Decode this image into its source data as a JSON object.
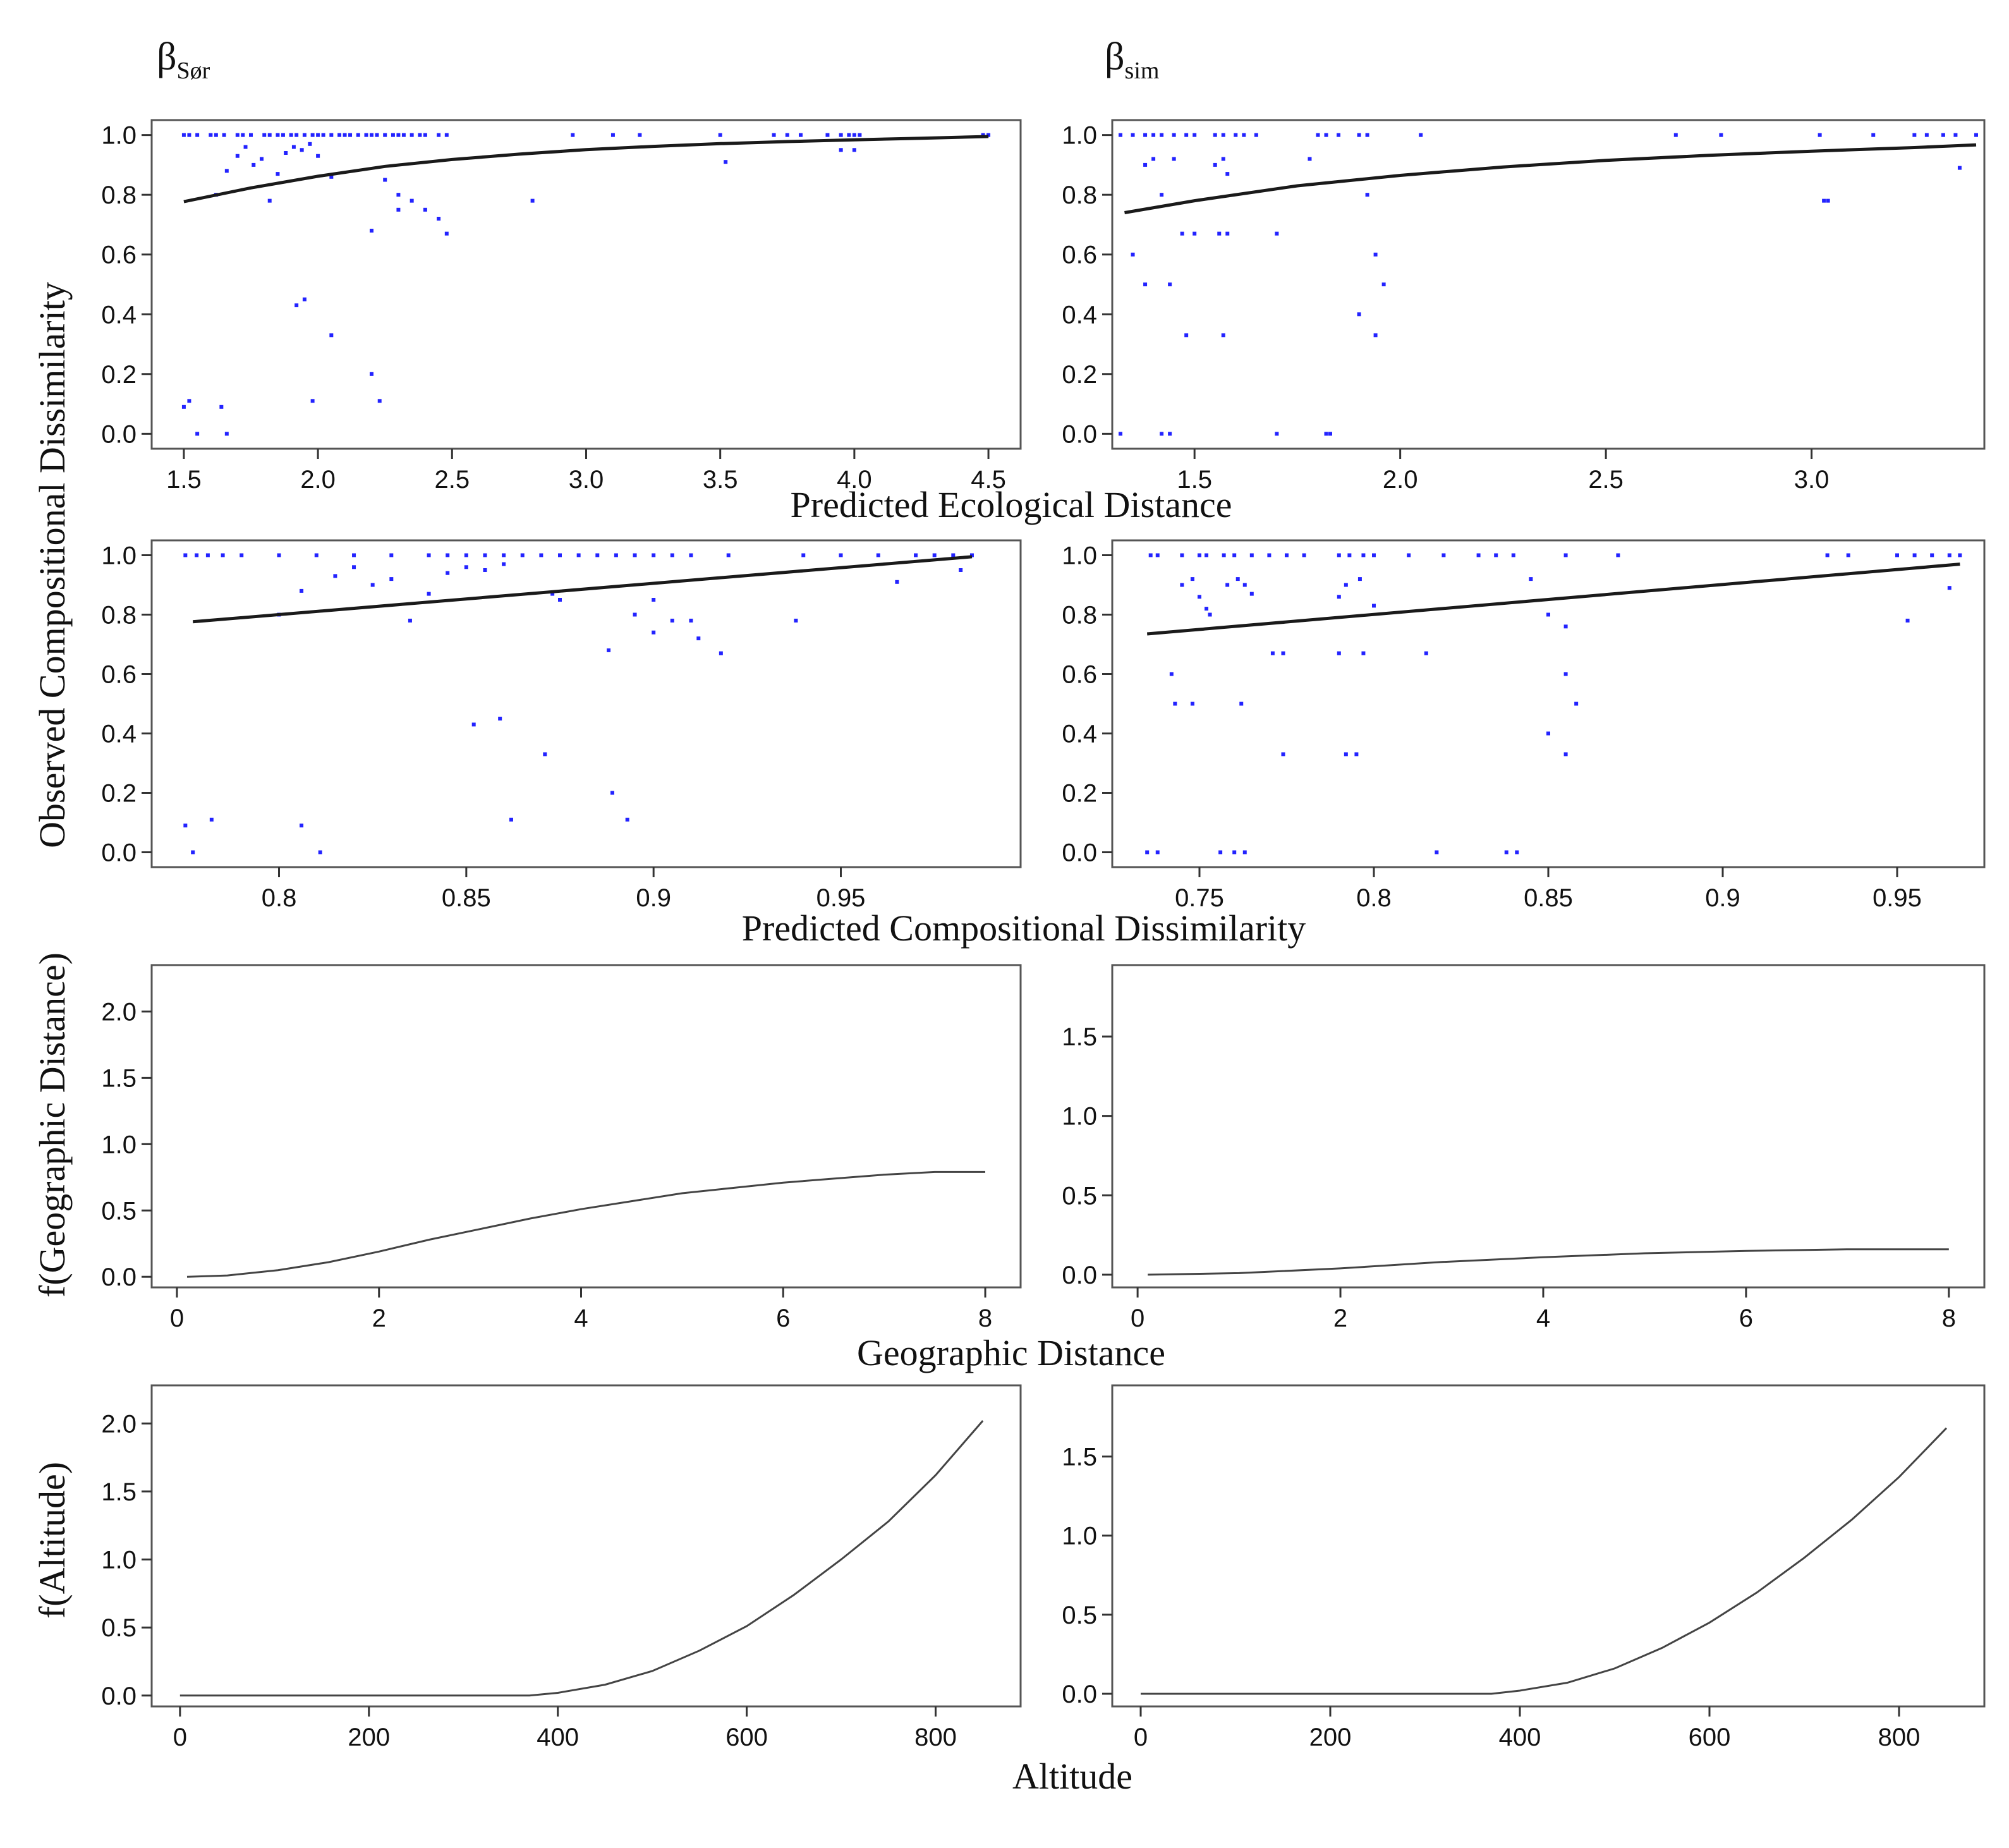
{
  "figure": {
    "column_titles": [
      {
        "symbol": "β",
        "subscript": "Sør"
      },
      {
        "symbol": "β",
        "subscript": "sim"
      }
    ],
    "axis_labels": {
      "row1_x": "Predicted Ecological Distance",
      "rows12_y": "Observed Compositional Dissimilarity",
      "row2_x": "Predicted Compositional Dissimilarity",
      "row3_y": "f(Geographic Distance)",
      "row3_x": "Geographic Distance",
      "row4_y": "f(Altitude)",
      "row4_x": "Altitude"
    }
  },
  "chart_data": [
    {
      "id": "eco_sor",
      "type": "scatter",
      "xlabel": "Predicted Ecological Distance",
      "ylabel": "Observed Compositional Dissimilarity",
      "xlim": [
        1.38,
        4.62
      ],
      "ylim": [
        -0.05,
        1.05
      ],
      "xticks": [
        1.5,
        2.0,
        2.5,
        3.0,
        3.5,
        4.0,
        4.5
      ],
      "yticks": [
        0.0,
        0.2,
        0.4,
        0.6,
        0.8,
        1.0
      ],
      "xtick_labels": [
        "1.5",
        "2.0",
        "2.5",
        "3.0",
        "3.5",
        "4.0",
        "4.5"
      ],
      "ytick_labels": [
        "0.0",
        "0.2",
        "0.4",
        "0.6",
        "0.8",
        "1.0"
      ],
      "points": {
        "x": [
          1.5,
          1.52,
          1.55,
          1.6,
          1.62,
          1.65,
          1.7,
          1.72,
          1.75,
          1.8,
          1.82,
          1.85,
          1.87,
          1.9,
          1.92,
          1.95,
          1.98,
          2.0,
          2.02,
          2.05,
          2.08,
          2.1,
          2.12,
          2.15,
          2.18,
          2.2,
          2.22,
          2.25,
          2.28,
          2.3,
          2.32,
          2.35,
          2.38,
          2.4,
          2.45,
          2.48,
          1.62,
          1.66,
          1.7,
          1.73,
          1.76,
          1.79,
          1.82,
          1.85,
          1.88,
          1.91,
          1.94,
          1.97,
          2.0,
          2.05,
          2.25,
          2.3,
          2.35,
          2.4,
          2.45,
          2.48,
          2.8,
          2.2,
          2.3,
          1.92,
          1.95,
          2.05,
          1.5,
          1.52,
          1.55,
          1.64,
          1.66,
          1.98,
          2.2,
          2.23,
          2.95,
          3.1,
          3.2,
          3.5,
          3.52,
          3.7,
          3.75,
          3.8,
          3.9,
          3.95,
          3.98,
          4.0,
          4.02,
          3.95,
          4.0,
          4.5,
          4.48
        ],
        "y": [
          1.0,
          1.0,
          1.0,
          1.0,
          1.0,
          1.0,
          1.0,
          1.0,
          1.0,
          1.0,
          1.0,
          1.0,
          1.0,
          1.0,
          1.0,
          1.0,
          1.0,
          1.0,
          1.0,
          1.0,
          1.0,
          1.0,
          1.0,
          1.0,
          1.0,
          1.0,
          1.0,
          1.0,
          1.0,
          1.0,
          1.0,
          1.0,
          1.0,
          1.0,
          1.0,
          1.0,
          0.8,
          0.88,
          0.93,
          0.96,
          0.9,
          0.92,
          0.78,
          0.87,
          0.94,
          0.96,
          0.95,
          0.97,
          0.93,
          0.86,
          0.85,
          0.75,
          0.78,
          0.75,
          0.72,
          0.67,
          0.78,
          0.68,
          0.8,
          0.43,
          0.45,
          0.33,
          0.09,
          0.11,
          0.0,
          0.09,
          0.0,
          0.11,
          0.2,
          0.11,
          1.0,
          1.0,
          1.0,
          1.0,
          0.91,
          1.0,
          1.0,
          1.0,
          1.0,
          1.0,
          1.0,
          1.0,
          1.0,
          0.95,
          0.95,
          1.0,
          1.0
        ]
      },
      "fit": {
        "x": [
          1.5,
          1.75,
          2.0,
          2.25,
          2.5,
          2.75,
          3.0,
          3.25,
          3.5,
          3.75,
          4.0,
          4.25,
          4.5
        ],
        "y": [
          0.777,
          0.823,
          0.862,
          0.895,
          0.918,
          0.936,
          0.951,
          0.962,
          0.971,
          0.978,
          0.984,
          0.989,
          0.995
        ]
      }
    },
    {
      "id": "eco_sim",
      "type": "scatter",
      "xlabel": "Predicted Ecological Distance",
      "ylabel": "",
      "xlim": [
        1.3,
        3.42
      ],
      "ylim": [
        -0.05,
        1.05
      ],
      "xticks": [
        1.5,
        2.0,
        2.5,
        3.0
      ],
      "yticks": [
        0.0,
        0.2,
        0.4,
        0.6,
        0.8,
        1.0
      ],
      "xtick_labels": [
        "1.5",
        "2.0",
        "2.5",
        "3.0"
      ],
      "ytick_labels": [
        "0.0",
        "0.2",
        "0.4",
        "0.6",
        "0.8",
        "1.0"
      ],
      "points": {
        "x": [
          1.32,
          1.35,
          1.38,
          1.4,
          1.42,
          1.45,
          1.48,
          1.5,
          1.55,
          1.57,
          1.6,
          1.62,
          1.65,
          1.8,
          1.82,
          1.85,
          1.9,
          1.92,
          2.05,
          2.67,
          2.78,
          3.02,
          3.15,
          3.25,
          3.28,
          3.32,
          3.35,
          3.4,
          1.38,
          1.4,
          1.42,
          1.45,
          1.55,
          1.57,
          1.58,
          1.78,
          1.92,
          1.47,
          1.5,
          1.56,
          1.58,
          1.7,
          1.35,
          1.38,
          1.44,
          1.94,
          1.96,
          1.9,
          1.94,
          1.48,
          1.57,
          1.32,
          1.42,
          1.44,
          1.7,
          1.82,
          1.83,
          3.03,
          3.04,
          3.36
        ],
        "y": [
          1.0,
          1.0,
          1.0,
          1.0,
          1.0,
          1.0,
          1.0,
          1.0,
          1.0,
          1.0,
          1.0,
          1.0,
          1.0,
          1.0,
          1.0,
          1.0,
          1.0,
          1.0,
          1.0,
          1.0,
          1.0,
          1.0,
          1.0,
          1.0,
          1.0,
          1.0,
          1.0,
          1.0,
          0.9,
          0.92,
          0.8,
          0.92,
          0.9,
          0.92,
          0.87,
          0.92,
          0.8,
          0.67,
          0.67,
          0.67,
          0.67,
          0.67,
          0.6,
          0.5,
          0.5,
          0.6,
          0.5,
          0.4,
          0.33,
          0.33,
          0.33,
          0.0,
          0.0,
          0.0,
          0.0,
          0.0,
          0.0,
          0.78,
          0.78,
          0.89
        ]
      },
      "fit": {
        "x": [
          1.33,
          1.5,
          1.75,
          2.0,
          2.25,
          2.5,
          2.75,
          3.0,
          3.25,
          3.4
        ],
        "y": [
          0.74,
          0.78,
          0.83,
          0.865,
          0.893,
          0.915,
          0.932,
          0.946,
          0.958,
          0.967
        ]
      }
    },
    {
      "id": "comp_sor",
      "type": "scatter",
      "xlabel": "Predicted Compositional Dissimilarity",
      "ylabel": "Observed Compositional Dissimilarity",
      "xlim": [
        0.766,
        0.998
      ],
      "ylim": [
        -0.05,
        1.05
      ],
      "xticks": [
        0.8,
        0.85,
        0.9,
        0.95
      ],
      "yticks": [
        0.0,
        0.2,
        0.4,
        0.6,
        0.8,
        1.0
      ],
      "xtick_labels": [
        "0.8",
        "0.85",
        "0.9",
        "0.95"
      ],
      "ytick_labels": [
        "0.0",
        "0.2",
        "0.4",
        "0.6",
        "0.8",
        "1.0"
      ],
      "points": {
        "x": [
          0.775,
          0.778,
          0.781,
          0.785,
          0.79,
          0.8,
          0.81,
          0.82,
          0.83,
          0.84,
          0.845,
          0.85,
          0.855,
          0.86,
          0.865,
          0.87,
          0.875,
          0.88,
          0.885,
          0.89,
          0.895,
          0.9,
          0.905,
          0.91,
          0.92,
          0.94,
          0.95,
          0.96,
          0.97,
          0.975,
          0.98,
          0.985,
          0.8,
          0.806,
          0.815,
          0.82,
          0.825,
          0.83,
          0.835,
          0.84,
          0.845,
          0.85,
          0.855,
          0.86,
          0.875,
          0.888,
          0.895,
          0.9,
          0.91,
          0.9,
          0.905,
          0.912,
          0.918,
          0.873,
          0.938,
          0.965,
          0.982,
          0.852,
          0.859,
          0.871,
          0.889,
          0.893,
          0.775,
          0.777,
          0.782,
          0.806,
          0.811,
          0.862
        ],
        "y": [
          1.0,
          1.0,
          1.0,
          1.0,
          1.0,
          1.0,
          1.0,
          1.0,
          1.0,
          1.0,
          1.0,
          1.0,
          1.0,
          1.0,
          1.0,
          1.0,
          1.0,
          1.0,
          1.0,
          1.0,
          1.0,
          1.0,
          1.0,
          1.0,
          1.0,
          1.0,
          1.0,
          1.0,
          1.0,
          1.0,
          1.0,
          1.0,
          0.8,
          0.88,
          0.93,
          0.96,
          0.9,
          0.92,
          0.78,
          0.87,
          0.94,
          0.96,
          0.95,
          0.97,
          0.85,
          0.68,
          0.8,
          0.85,
          0.78,
          0.74,
          0.78,
          0.72,
          0.67,
          0.87,
          0.78,
          0.91,
          0.95,
          0.43,
          0.45,
          0.33,
          0.2,
          0.11,
          0.09,
          0.0,
          0.11,
          0.09,
          0.0,
          0.11
        ]
      },
      "fit": {
        "x": [
          0.777,
          0.985
        ],
        "y": [
          0.776,
          0.995
        ]
      }
    },
    {
      "id": "comp_sim",
      "type": "scatter",
      "xlabel": "Predicted Compositional Dissimilarity",
      "ylabel": "",
      "xlim": [
        0.725,
        0.975
      ],
      "ylim": [
        -0.05,
        1.05
      ],
      "xticks": [
        0.75,
        0.8,
        0.85,
        0.9,
        0.95
      ],
      "yticks": [
        0.0,
        0.2,
        0.4,
        0.6,
        0.8,
        1.0
      ],
      "xtick_labels": [
        "0.75",
        "0.8",
        "0.85",
        "0.9",
        "0.95"
      ],
      "ytick_labels": [
        "0.0",
        "0.2",
        "0.4",
        "0.6",
        "0.8",
        "1.0"
      ],
      "points": {
        "x": [
          0.736,
          0.738,
          0.745,
          0.75,
          0.752,
          0.757,
          0.76,
          0.765,
          0.77,
          0.775,
          0.78,
          0.79,
          0.793,
          0.797,
          0.8,
          0.81,
          0.82,
          0.83,
          0.835,
          0.84,
          0.855,
          0.87,
          0.93,
          0.936,
          0.95,
          0.955,
          0.96,
          0.965,
          0.968,
          0.745,
          0.748,
          0.75,
          0.752,
          0.753,
          0.758,
          0.761,
          0.763,
          0.765,
          0.79,
          0.792,
          0.796,
          0.8,
          0.845,
          0.85,
          0.855,
          0.771,
          0.774,
          0.79,
          0.797,
          0.815,
          0.742,
          0.743,
          0.748,
          0.762,
          0.855,
          0.858,
          0.85,
          0.855,
          0.774,
          0.792,
          0.795,
          0.735,
          0.738,
          0.756,
          0.76,
          0.763,
          0.818,
          0.838,
          0.841,
          0.953,
          0.965
        ],
        "y": [
          1.0,
          1.0,
          1.0,
          1.0,
          1.0,
          1.0,
          1.0,
          1.0,
          1.0,
          1.0,
          1.0,
          1.0,
          1.0,
          1.0,
          1.0,
          1.0,
          1.0,
          1.0,
          1.0,
          1.0,
          1.0,
          1.0,
          1.0,
          1.0,
          1.0,
          1.0,
          1.0,
          1.0,
          1.0,
          0.9,
          0.92,
          0.86,
          0.82,
          0.8,
          0.9,
          0.92,
          0.9,
          0.87,
          0.86,
          0.9,
          0.92,
          0.83,
          0.92,
          0.8,
          0.76,
          0.67,
          0.67,
          0.67,
          0.67,
          0.67,
          0.6,
          0.5,
          0.5,
          0.5,
          0.6,
          0.5,
          0.4,
          0.33,
          0.33,
          0.33,
          0.33,
          0.0,
          0.0,
          0.0,
          0.0,
          0.0,
          0.0,
          0.0,
          0.0,
          0.78,
          0.89
        ]
      },
      "fit": {
        "x": [
          0.735,
          0.968
        ],
        "y": [
          0.735,
          0.97
        ]
      }
    },
    {
      "id": "geo_sor",
      "type": "line",
      "xlabel": "Geographic Distance",
      "ylabel": "f(Geographic Distance)",
      "xlim": [
        -0.25,
        8.35
      ],
      "ylim": [
        -0.08,
        2.35
      ],
      "xticks": [
        0,
        2,
        4,
        6,
        8
      ],
      "yticks": [
        0.0,
        0.5,
        1.0,
        1.5,
        2.0
      ],
      "xtick_labels": [
        "0",
        "2",
        "4",
        "6",
        "8"
      ],
      "ytick_labels": [
        "0.0",
        "0.5",
        "1.0",
        "1.5",
        "2.0"
      ],
      "x": [
        0.1,
        0.5,
        1.0,
        1.5,
        2.0,
        2.5,
        3.0,
        3.5,
        4.0,
        4.5,
        5.0,
        5.5,
        6.0,
        6.5,
        7.0,
        7.5,
        8.0
      ],
      "y": [
        0.0,
        0.01,
        0.05,
        0.11,
        0.19,
        0.28,
        0.36,
        0.44,
        0.51,
        0.57,
        0.63,
        0.67,
        0.71,
        0.74,
        0.77,
        0.79,
        0.79
      ]
    },
    {
      "id": "geo_sim",
      "type": "line",
      "xlabel": "Geographic Distance",
      "ylabel": "",
      "xlim": [
        -0.25,
        8.35
      ],
      "ylim": [
        -0.08,
        1.95
      ],
      "xticks": [
        0,
        2,
        4,
        6,
        8
      ],
      "yticks": [
        0.0,
        0.5,
        1.0,
        1.5
      ],
      "xtick_labels": [
        "0",
        "2",
        "4",
        "6",
        "8"
      ],
      "ytick_labels": [
        "0.0",
        "0.5",
        "1.0",
        "1.5"
      ],
      "x": [
        0.1,
        1.0,
        2.0,
        3.0,
        4.0,
        5.0,
        6.0,
        7.0,
        8.0
      ],
      "y": [
        0.0,
        0.01,
        0.04,
        0.08,
        0.11,
        0.135,
        0.15,
        0.16,
        0.16
      ]
    },
    {
      "id": "alt_sor",
      "type": "line",
      "xlabel": "Altitude",
      "ylabel": "f(Altitude)",
      "xlim": [
        -30,
        890
      ],
      "ylim": [
        -0.08,
        2.28
      ],
      "xticks": [
        0,
        200,
        400,
        600,
        800
      ],
      "yticks": [
        0.0,
        0.5,
        1.0,
        1.5,
        2.0
      ],
      "xtick_labels": [
        "0",
        "200",
        "400",
        "600",
        "800"
      ],
      "ytick_labels": [
        "0.0",
        "0.5",
        "1.0",
        "1.5",
        "2.0"
      ],
      "x": [
        0,
        100,
        200,
        300,
        370,
        400,
        450,
        500,
        550,
        600,
        650,
        700,
        750,
        800,
        850
      ],
      "y": [
        0.0,
        0.0,
        0.0,
        0.0,
        0.0,
        0.02,
        0.08,
        0.18,
        0.33,
        0.51,
        0.74,
        1.0,
        1.28,
        1.62,
        2.02
      ]
    },
    {
      "id": "alt_sim",
      "type": "line",
      "xlabel": "Altitude",
      "ylabel": "",
      "xlim": [
        -30,
        890
      ],
      "ylim": [
        -0.08,
        1.95
      ],
      "xticks": [
        0,
        200,
        400,
        600,
        800
      ],
      "yticks": [
        0.0,
        0.5,
        1.0,
        1.5
      ],
      "xtick_labels": [
        "0",
        "200",
        "400",
        "600",
        "800"
      ],
      "ytick_labels": [
        "0.0",
        "0.5",
        "1.0",
        "1.5"
      ],
      "x": [
        0,
        100,
        200,
        300,
        370,
        400,
        450,
        500,
        550,
        600,
        650,
        700,
        750,
        800,
        850
      ],
      "y": [
        0.0,
        0.0,
        0.0,
        0.0,
        0.0,
        0.02,
        0.07,
        0.16,
        0.29,
        0.45,
        0.64,
        0.86,
        1.1,
        1.37,
        1.68
      ]
    }
  ]
}
